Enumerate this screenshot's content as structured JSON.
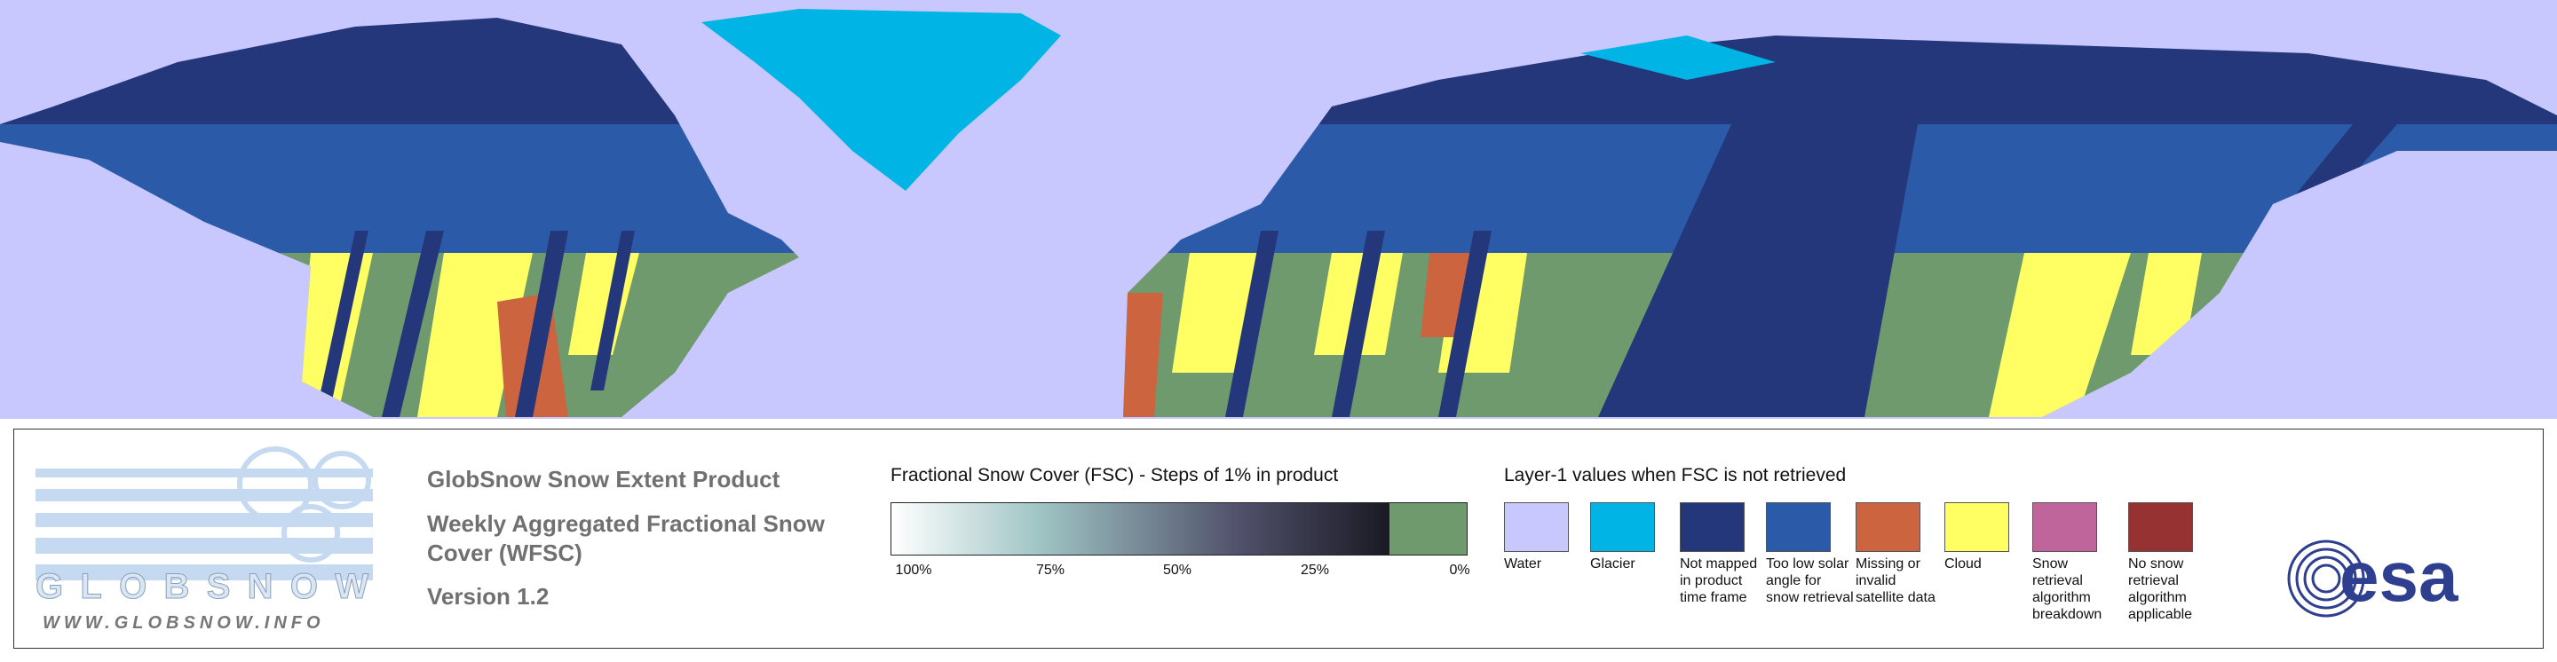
{
  "logo": {
    "name": "GLOBSNOW",
    "url": "WWW.GLOBSNOW.INFO"
  },
  "product": {
    "title": "GlobSnow Snow Extent Product",
    "subtitle": "Weekly Aggregated Fractional Snow Cover (WFSC)",
    "version": "Version 1.2"
  },
  "fsc_scale": {
    "title": "Fractional Snow Cover (FSC) - Steps of 1% in product",
    "ticks": [
      "100%",
      "75%",
      "50%",
      "25%",
      "0%"
    ]
  },
  "layer1": {
    "title": "Layer-1 values when FSC is not retrieved",
    "items": [
      {
        "label": "Water",
        "color": "#c8c8ff"
      },
      {
        "label": "Glacier",
        "color": "#00b4e6"
      },
      {
        "label": "Not mapped in product time frame",
        "color": "#24377a"
      },
      {
        "label": "Too low solar angle for snow retrieval",
        "color": "#2b5ba8"
      },
      {
        "label": "Missing or invalid satellite data",
        "color": "#cd6440"
      },
      {
        "label": "Cloud",
        "color": "#ffff64"
      },
      {
        "label": "Snow retrieval algorithm breakdown",
        "color": "#c0649c"
      },
      {
        "label": "No snow retrieval algorithm applicable",
        "color": "#963232"
      }
    ]
  },
  "esa": "esa"
}
